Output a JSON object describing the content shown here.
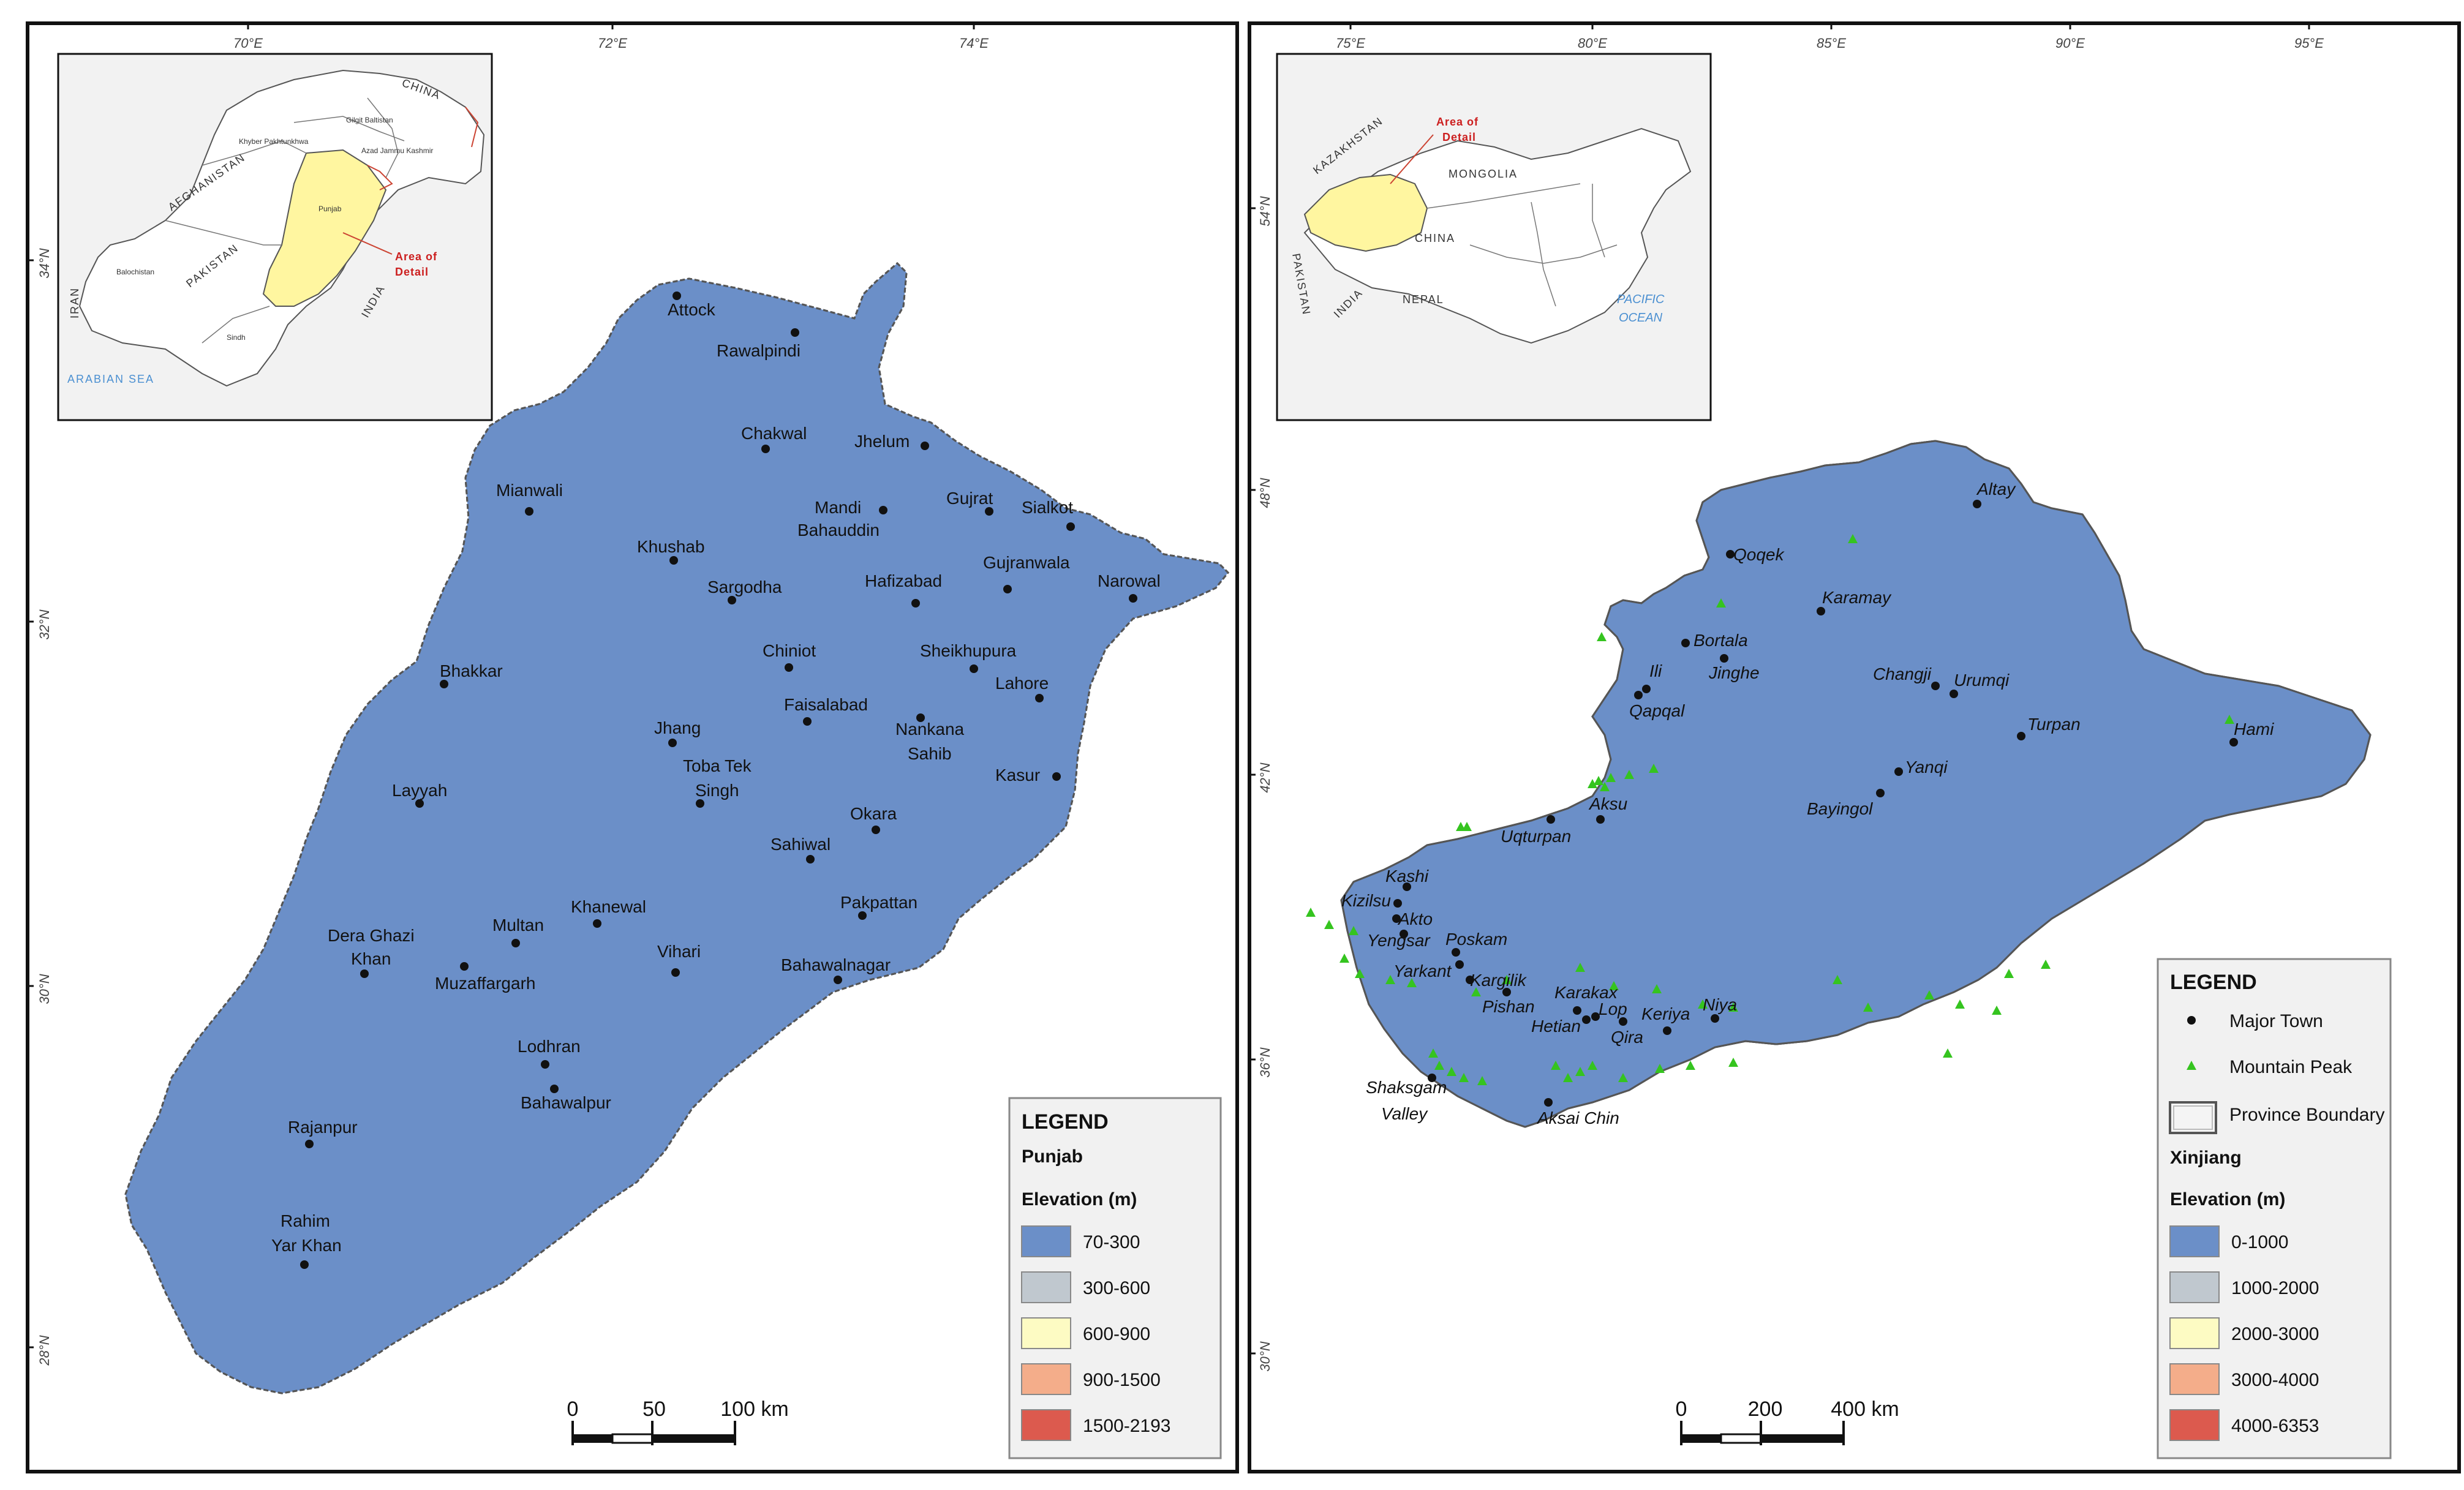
{
  "colors": {
    "elev1": "#6b8fc8",
    "elev2": "#c0c8cf",
    "elev3": "#fdfbc3",
    "elev4": "#f4ad8a",
    "elev5": "#dc5a4e",
    "inset_fill": "#fff6a0",
    "town": "#111111",
    "peak": "#35c41f",
    "lake": "#ffffff"
  },
  "punjab": {
    "graticule_top": [
      "70°E",
      "72°E",
      "74°E"
    ],
    "graticule_left": [
      "34°N",
      "32°N",
      "30°N",
      "28°N"
    ],
    "inset": {
      "labels": [
        "CHINA",
        "AFGHANISTAN",
        "PAKISTAN",
        "INDIA",
        "IRAN",
        "ARABIAN SEA",
        "Gilgit Baltistan",
        "Khyber Pakhtunkhwa",
        "Azad Jammu Kashmir",
        "Punjab",
        "Balochistan",
        "Sindh"
      ],
      "area_label": [
        "Area of",
        "Detail"
      ]
    },
    "towns": [
      "Attock",
      "Rawalpindi",
      "Chakwal",
      "Jhelum",
      "Mianwali",
      "Mandi",
      "Bahauddin",
      "Gujrat",
      "Sialkot",
      "Khushab",
      "Sargodha",
      "Hafizabad",
      "Gujranwala",
      "Narowal",
      "Bhakkar",
      "Chiniot",
      "Sheikhupura",
      "Lahore",
      "Faisalabad",
      "Nankana",
      "Sahib",
      "Jhang",
      "Toba Tek",
      "Singh",
      "Kasur",
      "Layyah",
      "Okara",
      "Sahiwal",
      "Pakpattan",
      "Khanewal",
      "Multan",
      "Dera Ghazi",
      "Khan",
      "Muzaffargarh",
      "Vihari",
      "Bahawalnagar",
      "Lodhran",
      "Bahawalpur",
      "Rajanpur",
      "Rahim",
      "Yar Khan"
    ],
    "legend": {
      "title": "LEGEND",
      "region": "Punjab",
      "elev_title": "Elevation (m)",
      "items": [
        "70-300",
        "300-600",
        "600-900",
        "900-1500",
        "1500-2193"
      ]
    },
    "scale": {
      "labels": [
        "0",
        "50",
        "100 km"
      ]
    }
  },
  "xinjiang": {
    "graticule_top": [
      "75°E",
      "80°E",
      "85°E",
      "90°E",
      "95°E"
    ],
    "graticule_left": [
      "54°N",
      "48°N",
      "42°N",
      "36°N",
      "30°N"
    ],
    "inset": {
      "labels": [
        "KAZAKHSTAN",
        "MONGOLIA",
        "CHINA",
        "NEPAL",
        "INDIA",
        "PAKISTAN",
        "PACIFIC",
        "OCEAN"
      ],
      "area_label": [
        "Area of",
        "Detail"
      ]
    },
    "towns": [
      "Altay",
      "Qoqek",
      "Karamay",
      "Bortala",
      "Jinghe",
      "Changji",
      "Urumqi",
      "Ili",
      "Qapqal",
      "Turpan",
      "Hami",
      "Yanqi",
      "Bayingol",
      "Aksu",
      "Uqturpan",
      "Kashi",
      "Kizilsu",
      "Akto",
      "Yengsar",
      "Poskam",
      "Yarkant",
      "Kargilik",
      "Pishan",
      "Karakax",
      "Lop",
      "Hetian",
      "Qira",
      "Keriya",
      "Niya",
      "Shaksgam",
      "Valley",
      "Aksai Chin"
    ],
    "legend": {
      "title": "LEGEND",
      "major_town": "Major Town",
      "mountain_peak": "Mountain Peak",
      "province_boundary": "Province Boundary",
      "region": "Xinjiang",
      "elev_title": "Elevation (m)",
      "items": [
        "0-1000",
        "1000-2000",
        "2000-3000",
        "3000-4000",
        "4000-6353"
      ]
    },
    "scale": {
      "labels": [
        "0",
        "200",
        "400 km"
      ]
    }
  }
}
